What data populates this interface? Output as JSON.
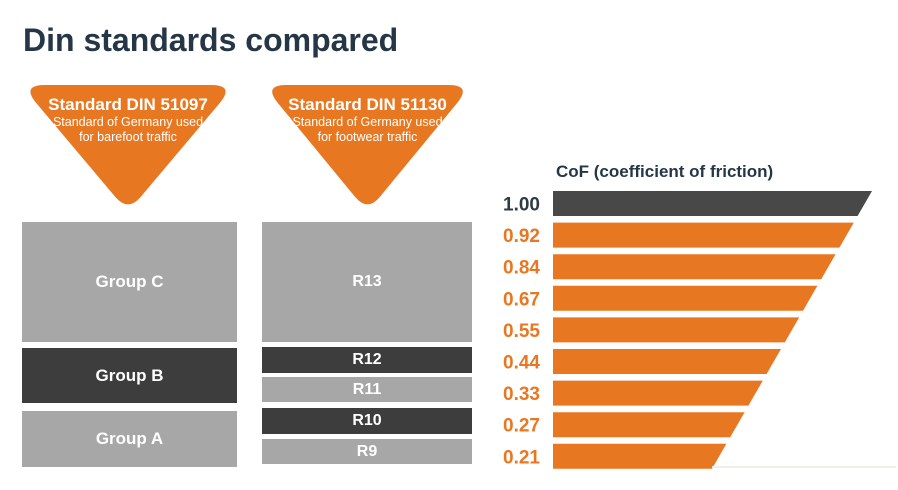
{
  "header": {
    "title": "Din standards compared"
  },
  "colors": {
    "orange": "#E87722",
    "navy": "#253746",
    "dark_gray_box": "#3d3d3d",
    "light_gray_box": "#a7a7a7",
    "dark_bar": "#484848",
    "white": "#ffffff"
  },
  "badges": [
    {
      "title": "Standard DIN 51097",
      "subtitle_line1": "Standard of Germany used",
      "subtitle_line2": "for barefoot traffic"
    },
    {
      "title": "Standard DIN 51130",
      "subtitle_line1": "Standard of Germany used",
      "subtitle_line2": "for footwear traffic"
    }
  ],
  "columns": {
    "din51097_groups": [
      {
        "label": "Group C",
        "shade": "light"
      },
      {
        "label": "Group B",
        "shade": "dark"
      },
      {
        "label": "Group A",
        "shade": "light"
      }
    ],
    "din51130_ratings": [
      {
        "label": "R13",
        "shade": "light"
      },
      {
        "label": "R12",
        "shade": "dark"
      },
      {
        "label": "R11",
        "shade": "light"
      },
      {
        "label": "R10",
        "shade": "dark"
      },
      {
        "label": "R9",
        "shade": "light"
      }
    ]
  },
  "chart_data": {
    "type": "bar",
    "subtype": "horizontal-funnel",
    "title": "CoF (coefficient of friction)",
    "xlabel": "",
    "ylabel": "",
    "grid": false,
    "legend": null,
    "values": [
      1.0,
      0.92,
      0.84,
      0.67,
      0.55,
      0.44,
      0.33,
      0.27,
      0.21
    ],
    "bars": [
      {
        "label": "1.00",
        "value": 1.0,
        "bar_color": "#484848",
        "label_color": "#2f3b44"
      },
      {
        "label": "0.92",
        "value": 0.92,
        "bar_color": "#E87722",
        "label_color": "#E87722"
      },
      {
        "label": "0.84",
        "value": 0.84,
        "bar_color": "#E87722",
        "label_color": "#E87722"
      },
      {
        "label": "0.67",
        "value": 0.67,
        "bar_color": "#E87722",
        "label_color": "#E87722"
      },
      {
        "label": "0.55",
        "value": 0.55,
        "bar_color": "#E87722",
        "label_color": "#E87722"
      },
      {
        "label": "0.44",
        "value": 0.44,
        "bar_color": "#E87722",
        "label_color": "#E87722"
      },
      {
        "label": "0.33",
        "value": 0.33,
        "bar_color": "#E87722",
        "label_color": "#E87722"
      },
      {
        "label": "0.27",
        "value": 0.27,
        "bar_color": "#E87722",
        "label_color": "#E87722"
      },
      {
        "label": "0.21",
        "value": 0.21,
        "bar_color": "#E87722",
        "label_color": "#E87722"
      }
    ]
  }
}
